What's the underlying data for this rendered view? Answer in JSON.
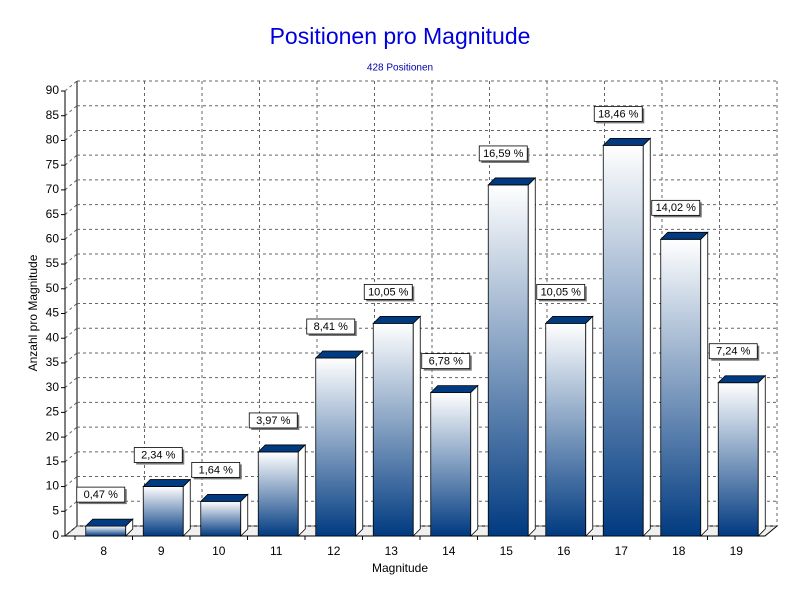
{
  "chart_data": {
    "type": "bar",
    "title": "Positionen pro Magnitude",
    "subtitle": "428 Positionen",
    "x_label": "Magnitude",
    "y_label": "Anzahl pro Magnitude",
    "categories": [
      "8",
      "9",
      "10",
      "11",
      "12",
      "13",
      "14",
      "15",
      "16",
      "17",
      "18",
      "19"
    ],
    "values": [
      2,
      10,
      7,
      17,
      36,
      43,
      29,
      71,
      43,
      79,
      60,
      31
    ],
    "data_labels": [
      "0,47 %",
      "2,34 %",
      "1,64 %",
      "3,97 %",
      "8,41 %",
      "10,05 %",
      "6,78 %",
      "16,59 %",
      "10,05 %",
      "18,46 %",
      "14,02 %",
      "7,24 %"
    ],
    "color": "#003a80",
    "ylim": [
      0,
      90
    ],
    "yticks": [
      0,
      5,
      10,
      15,
      20,
      25,
      30,
      35,
      40,
      45,
      50,
      55,
      60,
      65,
      70,
      75,
      80,
      85,
      90
    ],
    "grid": true
  }
}
